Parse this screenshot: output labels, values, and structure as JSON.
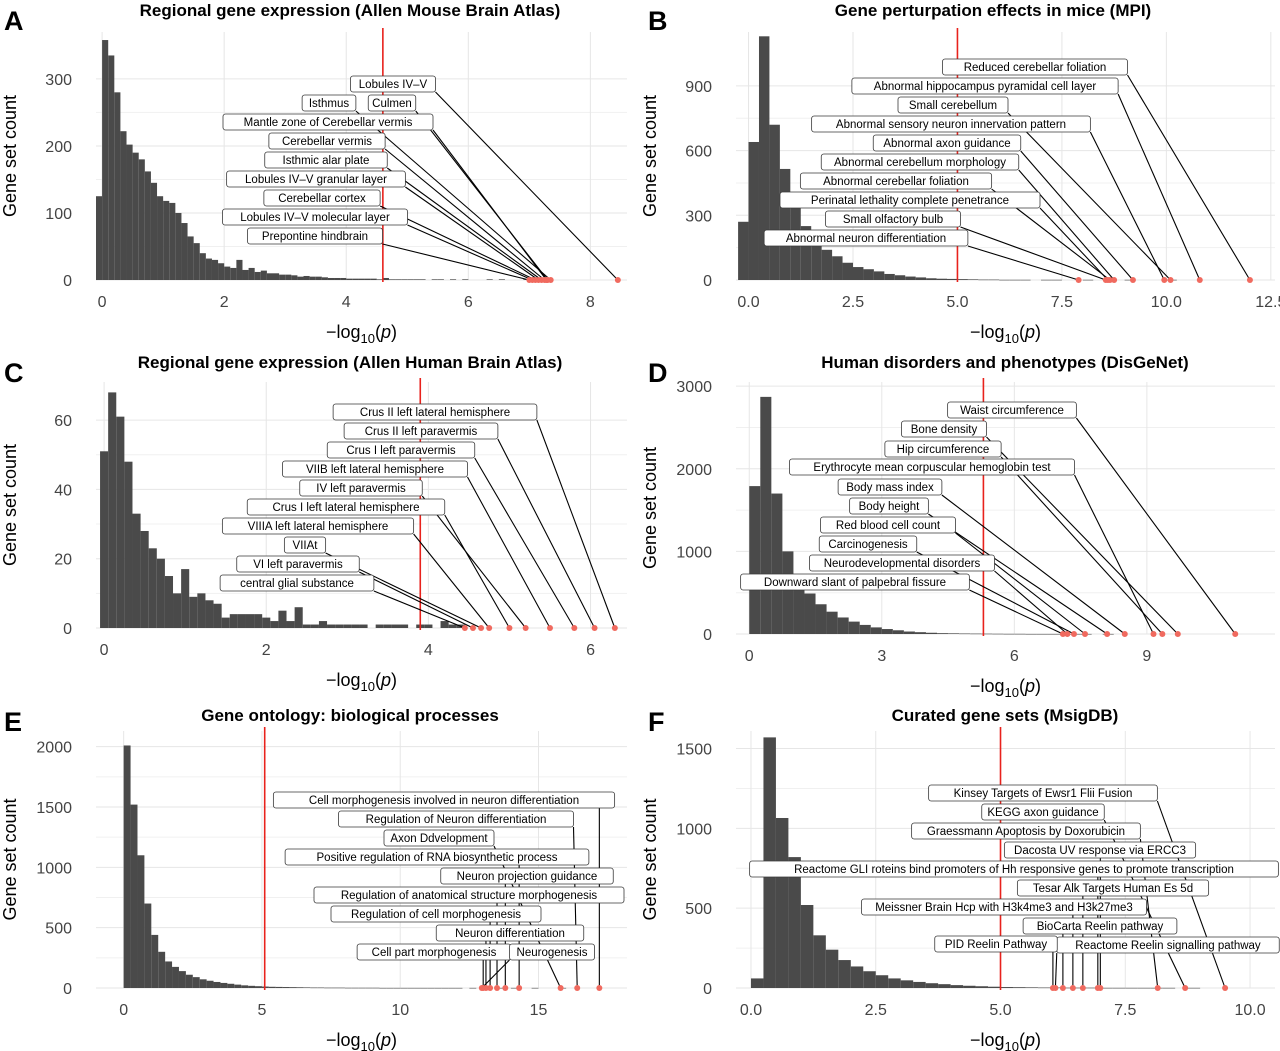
{
  "chart_data": [
    {
      "panel": "A",
      "type": "bar",
      "title": "Regional gene expression (Allen Mouse Brain Atlas)",
      "xlabel": "−log10(p)",
      "ylabel": "Gene set count",
      "xlim": [
        -0.1,
        8.6
      ],
      "ylim": [
        0,
        370
      ],
      "xticks": [
        0,
        2,
        4,
        6,
        8
      ],
      "yticks": [
        0,
        100,
        200,
        300
      ],
      "bin_start": -0.1,
      "bin_width": 0.1,
      "counts": [
        125,
        358,
        335,
        280,
        222,
        202,
        190,
        180,
        162,
        145,
        125,
        118,
        115,
        100,
        85,
        65,
        55,
        40,
        32,
        30,
        25,
        20,
        18,
        30,
        15,
        18,
        12,
        14,
        10,
        10,
        8,
        8,
        7,
        5,
        6,
        5,
        5,
        4,
        3,
        3,
        3,
        2,
        2,
        2,
        2,
        2,
        1,
        3,
        1,
        1,
        1,
        1,
        1,
        1,
        0,
        1,
        1,
        0,
        1,
        0,
        1,
        0,
        0,
        0,
        1,
        0,
        1,
        0,
        0,
        0,
        1,
        0,
        0,
        0,
        0,
        0,
        0,
        0,
        0,
        0,
        0,
        0,
        0,
        0,
        0,
        0,
        0
      ],
      "threshold": 4.6,
      "annotations": [
        {
          "label": "Lobules IV–V",
          "x": 8.45
        },
        {
          "label": "Isthmus",
          "x": 7.35
        },
        {
          "label": "Culmen",
          "x": 7.3
        },
        {
          "label": "Mantle zone of Cerebellar vermis",
          "x": 7.28
        },
        {
          "label": "Cerebellar vermis",
          "x": 7.25
        },
        {
          "label": "Isthmic alar plate",
          "x": 7.2
        },
        {
          "label": "Lobules IV–V granular layer",
          "x": 7.15
        },
        {
          "label": "Cerebellar cortex",
          "x": 7.1
        },
        {
          "label": "Lobules IV–V molecular layer",
          "x": 7.05
        },
        {
          "label": "Prepontine hindbrain",
          "x": 7.0
        }
      ]
    },
    {
      "panel": "B",
      "type": "bar",
      "title": "Gene perturpation effects in mice (MPI)",
      "xlabel": "−log10(p)",
      "ylabel": "Gene set count",
      "xlim": [
        -0.3,
        12.6
      ],
      "ylim": [
        0,
        1150
      ],
      "xticks": [
        0.0,
        2.5,
        5.0,
        7.5,
        10.0,
        12.5
      ],
      "xtick_labels": [
        "0.0",
        "2.5",
        "5.0",
        "7.5",
        "10.0",
        "12.5"
      ],
      "yticks": [
        0,
        300,
        600,
        900
      ],
      "bin_start": -0.25,
      "bin_width": 0.25,
      "counts": [
        270,
        640,
        1130,
        720,
        515,
        345,
        250,
        170,
        140,
        110,
        80,
        60,
        50,
        40,
        28,
        22,
        16,
        12,
        8,
        6,
        5,
        4,
        3,
        2,
        2,
        1,
        1,
        1,
        0,
        1,
        1,
        0,
        0,
        1,
        0,
        0,
        0,
        1,
        0,
        0,
        0,
        1,
        0,
        0,
        0,
        0,
        0,
        0,
        0,
        0,
        0,
        0
      ],
      "threshold": 5.0,
      "annotations": [
        {
          "label": "Reduced cerebellar foliation",
          "x": 12.0
        },
        {
          "label": "Abnormal hippocampus pyramidal cell layer",
          "x": 10.8
        },
        {
          "label": "Small cerebellum",
          "x": 10.1
        },
        {
          "label": "Abnormal sensory neuron innervation pattern",
          "x": 9.95
        },
        {
          "label": "Abnormal axon guidance",
          "x": 9.2
        },
        {
          "label": "Abnormal cerebellum morphology",
          "x": 8.75
        },
        {
          "label": "Abnormal cerebellar foliation",
          "x": 8.65
        },
        {
          "label": "Perinatal lethality  complete penetrance",
          "x": 8.6
        },
        {
          "label": "Small olfactory bulb",
          "x": 8.55
        },
        {
          "label": "Abnormal neuron differentiation",
          "x": 7.9
        }
      ]
    },
    {
      "panel": "C",
      "type": "bar",
      "title": "Regional gene expression (Allen Human Brain Atlas)",
      "xlabel": "−log10(p)",
      "ylabel": "Gene set count",
      "xlim": [
        -0.1,
        6.45
      ],
      "ylim": [
        0,
        71
      ],
      "xticks": [
        0,
        2,
        4,
        6
      ],
      "yticks": [
        0,
        20,
        40,
        60
      ],
      "bin_start": -0.05,
      "bin_width": 0.1,
      "counts": [
        51,
        68,
        61,
        48,
        33,
        28,
        23,
        20,
        15,
        10,
        17,
        9,
        10,
        8,
        7,
        3,
        4,
        4,
        4,
        4,
        3,
        2,
        5,
        2,
        6,
        1,
        1,
        2,
        1,
        1,
        1,
        1,
        1,
        0,
        1,
        1,
        1,
        1,
        0,
        1,
        1,
        0,
        2,
        1,
        1,
        0,
        0,
        0,
        0,
        0,
        0,
        0,
        0,
        0,
        0,
        0,
        0,
        0,
        0,
        0,
        0,
        0,
        0,
        0,
        0,
        0
      ],
      "threshold": 3.9,
      "annotations": [
        {
          "label": "Crus II left lateral hemisphere",
          "x": 6.3
        },
        {
          "label": "Crus II left paravermis",
          "x": 6.05
        },
        {
          "label": "Crus I left paravermis",
          "x": 5.8
        },
        {
          "label": "VIIB left lateral hemisphere",
          "x": 5.5
        },
        {
          "label": "IV left paravermis",
          "x": 5.2
        },
        {
          "label": "Crus I left lateral hemisphere",
          "x": 5.0
        },
        {
          "label": "VIIIA left lateral hemisphere",
          "x": 4.75
        },
        {
          "label": "VIIAt",
          "x": 4.65
        },
        {
          "label": "VI left paravermis",
          "x": 4.55
        },
        {
          "label": "central glial substance",
          "x": 4.45
        }
      ]
    },
    {
      "panel": "D",
      "type": "bar",
      "title": "Human disorders and phenotypes (DisGeNet)",
      "xlabel": "−log10(p)",
      "ylabel": "Gene set count",
      "xlim": [
        -0.3,
        11.9
      ],
      "ylim": [
        0,
        3050
      ],
      "xticks": [
        0,
        3,
        6,
        9
      ],
      "yticks": [
        0,
        1000,
        2000,
        3000
      ],
      "bin_start": -0.25,
      "bin_width": 0.25,
      "counts": [
        0,
        1790,
        2870,
        1700,
        1000,
        660,
        490,
        360,
        270,
        200,
        150,
        110,
        80,
        60,
        45,
        30,
        22,
        15,
        10,
        8,
        6,
        5,
        4,
        3,
        2,
        2,
        1,
        1,
        1,
        1,
        1,
        1,
        0,
        1,
        0,
        0,
        0,
        0,
        0,
        0,
        0,
        0,
        0,
        0,
        0,
        0,
        0,
        0,
        0
      ],
      "threshold": 5.3,
      "annotations": [
        {
          "label": "Waist circumference",
          "x": 11.0
        },
        {
          "label": "Bone density",
          "x": 9.7
        },
        {
          "label": "Hip circumference",
          "x": 9.35
        },
        {
          "label": "Erythrocyte mean corpuscular hemoglobin test",
          "x": 9.15
        },
        {
          "label": "Body mass index",
          "x": 8.5
        },
        {
          "label": "Body height",
          "x": 8.1
        },
        {
          "label": "Red blood cell count",
          "x": 7.6
        },
        {
          "label": "Carcinogenesis",
          "x": 7.35
        },
        {
          "label": "Neurodevelopmental disorders",
          "x": 7.2
        },
        {
          "label": "Downward slant of palpebral fissure",
          "x": 7.1
        }
      ]
    },
    {
      "panel": "E",
      "type": "bar",
      "title": "Gene ontology: biological processes",
      "xlabel": "−log10(p)",
      "ylabel": "Gene set count",
      "xlim": [
        -1.0,
        18.2
      ],
      "ylim": [
        0,
        2130
      ],
      "xticks": [
        0,
        5,
        10,
        15
      ],
      "yticks": [
        0,
        500,
        1000,
        1500,
        2000
      ],
      "bin_start": 0,
      "bin_width": 0.25,
      "counts": [
        2010,
        1520,
        1100,
        700,
        440,
        300,
        220,
        175,
        140,
        110,
        90,
        72,
        60,
        50,
        42,
        35,
        28,
        22,
        18,
        15,
        12,
        10,
        9,
        8,
        7,
        6,
        5,
        4,
        4,
        3,
        3,
        3,
        2,
        2,
        2,
        2,
        2,
        1,
        1,
        1,
        1,
        1,
        1,
        1,
        1,
        1,
        1,
        1,
        1,
        0,
        1,
        0,
        1,
        0,
        1,
        0,
        1,
        0,
        0,
        1,
        0,
        0,
        0,
        1,
        0,
        0,
        0,
        0,
        0,
        0,
        0,
        0
      ],
      "threshold": 5.1,
      "annotations": [
        {
          "label": "Cell morphogenesis involved in neuron differentiation",
          "x": 17.2
        },
        {
          "label": "Regulation of Neuron differentiation",
          "x": 16.4
        },
        {
          "label": "Axon Ddvelopment",
          "x": 15.8
        },
        {
          "label": "Positive regulation of RNA biosynthetic process",
          "x": 14.3
        },
        {
          "label": "Neuron projection guidance",
          "x": 13.8
        },
        {
          "label": "Regulation of anatomical structure morphogenesis",
          "x": 13.5
        },
        {
          "label": "Regulation of cell morphogenesis",
          "x": 13.25
        },
        {
          "label": "Neuron differentiation",
          "x": 13.1
        },
        {
          "label": "Cell part morphogenesis",
          "x": 13.0
        },
        {
          "label": "Neurogenesis",
          "x": 12.95
        }
      ]
    },
    {
      "panel": "F",
      "type": "bar",
      "title": "Curated gene sets (MsigDB)",
      "xlabel": "−log10(p)",
      "ylabel": "Gene set count",
      "xlim": [
        -0.3,
        10.5
      ],
      "ylim": [
        0,
        1610
      ],
      "xticks": [
        0.0,
        2.5,
        5.0,
        7.5,
        10.0
      ],
      "xtick_labels": [
        "0.0",
        "2.5",
        "5.0",
        "7.5",
        "10.0"
      ],
      "yticks": [
        0,
        500,
        1000,
        1500
      ],
      "bin_start": 0.0,
      "bin_width": 0.25,
      "counts": [
        60,
        1570,
        1065,
        820,
        520,
        330,
        240,
        175,
        135,
        105,
        80,
        60,
        48,
        38,
        30,
        24,
        18,
        14,
        11,
        8,
        6,
        5,
        4,
        3,
        3,
        2,
        2,
        2,
        1,
        1,
        1,
        1,
        1,
        1,
        0,
        1,
        0,
        0,
        0,
        0,
        0,
        0,
        0
      ],
      "threshold": 5.0,
      "annotations": [
        {
          "label": "Kinsey Targets of Ewsr1 Flii Fusion",
          "x": 9.5
        },
        {
          "label": "KEGG axon guidance",
          "x": 8.7
        },
        {
          "label": "Graessmann Apoptosis by Doxorubicin",
          "x": 8.15
        },
        {
          "label": "Dacosta UV response via ERCC3",
          "x": 7.0
        },
        {
          "label": "Reactome GLI roteins bind promoters of Hh responsive genes to promote transcription",
          "x": 6.95
        },
        {
          "label": "Tesar Alk Targets Human Es 5d",
          "x": 6.65
        },
        {
          "label": "Meissner Brain Hcp with H3k4me3 and H3k27me3",
          "x": 6.45
        },
        {
          "label": "BioCarta Reelin pathway",
          "x": 6.25
        },
        {
          "label": "Reactome Reelin signalling pathway",
          "x": 6.1
        },
        {
          "label": "PID Reelin Pathway",
          "x": 6.05
        }
      ]
    }
  ]
}
